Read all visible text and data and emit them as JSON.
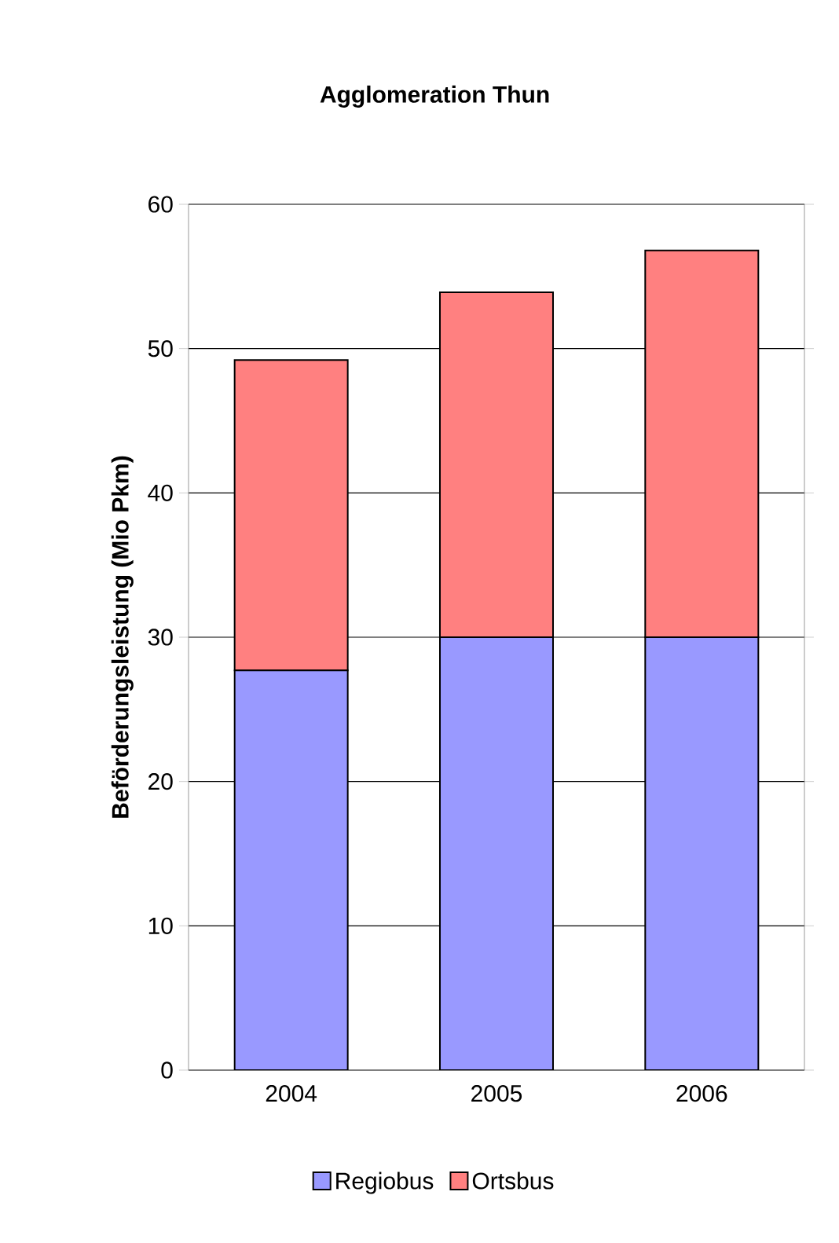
{
  "chart_data": {
    "type": "bar",
    "title": "Agglomeration Thun",
    "ylabel": "Beförderungsleistung (Mio Pkm)",
    "categories": [
      "2004",
      "2005",
      "2006"
    ],
    "stacked": true,
    "series": [
      {
        "name": "Regiobus",
        "color": "#9999ff",
        "values": [
          27.7,
          30.0,
          30.0
        ]
      },
      {
        "name": "Ortsbus",
        "color": "#ff8080",
        "values": [
          21.5,
          23.9,
          26.8
        ]
      }
    ],
    "ylim": [
      0,
      60
    ],
    "yticks": [
      0,
      10,
      20,
      30,
      40,
      50,
      60
    ],
    "grid": "y",
    "legend": "bottom"
  }
}
